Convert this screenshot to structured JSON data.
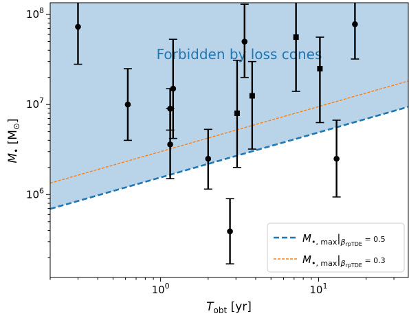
{
  "chart_data": {
    "type": "scatter",
    "xscale": "log",
    "yscale": "log",
    "xlim": [
      0.2,
      37
    ],
    "ylim": [
      120000,
      135000000
    ],
    "x_ticks": [
      {
        "value": 1,
        "base": "10",
        "exp": "0"
      },
      {
        "value": 10,
        "base": "10",
        "exp": "1"
      }
    ],
    "y_ticks": [
      {
        "value": 1000000,
        "base": "10",
        "exp": "6"
      },
      {
        "value": 10000000,
        "base": "10",
        "exp": "7"
      },
      {
        "value": 100000000,
        "base": "10",
        "exp": "8"
      }
    ],
    "xlabel": {
      "main": "T",
      "sub": "obt",
      "unit": " [yr]"
    },
    "ylabel": {
      "main": "M",
      "sub": "•",
      "unit_open": " [M",
      "unit_sub": "⊙",
      "unit_close": "]"
    },
    "region_label": "Forbidden by loss cones",
    "region_color": "#b9d3e8",
    "lines": [
      {
        "slope": 0.5,
        "y_at_x1": 1550000,
        "color": "#1f77b4",
        "style": "dashed-thick",
        "legend": {
          "main": "M",
          "sub": "•, max",
          "beta": "β",
          "beta_sub": "rpTDE",
          "value": " = 0.5"
        }
      },
      {
        "slope": 0.5,
        "y_at_x1": 3000000,
        "color": "#ff7f0e",
        "style": "dashed-thin",
        "legend": {
          "main": "M",
          "sub": "•, max",
          "beta": "β",
          "beta_sub": "rpTDE",
          "value": " = 0.3"
        }
      }
    ],
    "points": [
      {
        "x": 0.3,
        "y": 73000000,
        "ylow": 28000000,
        "yhigh": 135000000,
        "marker": "circle"
      },
      {
        "x": 0.62,
        "y": 10000000,
        "ylow": 4000000,
        "yhigh": 25000000,
        "marker": "circle"
      },
      {
        "x": 1.15,
        "y": 9000000,
        "ylow": 5200000,
        "yhigh": 15000000,
        "marker": "circle"
      },
      {
        "x": 1.15,
        "y": 3600000,
        "ylow": 1500000,
        "yhigh": 9000000,
        "marker": "circle"
      },
      {
        "x": 1.2,
        "y": 15000000,
        "ylow": 4200000,
        "yhigh": 53000000,
        "marker": "circle"
      },
      {
        "x": 2.0,
        "y": 2500000,
        "ylow": 1150000,
        "yhigh": 5300000,
        "marker": "circle"
      },
      {
        "x": 2.75,
        "y": 390000,
        "ylow": 170000,
        "yhigh": 900000,
        "marker": "circle"
      },
      {
        "x": 3.05,
        "y": 8000000,
        "ylow": 2000000,
        "yhigh": 31000000,
        "marker": "square"
      },
      {
        "x": 3.4,
        "y": 50000000,
        "ylow": 20000000,
        "yhigh": 130000000,
        "marker": "circle"
      },
      {
        "x": 3.8,
        "y": 12500000,
        "ylow": 3200000,
        "yhigh": 30000000,
        "marker": "square"
      },
      {
        "x": 7.2,
        "y": 56000000,
        "ylow": 14000000,
        "yhigh": 135000000,
        "marker": "square"
      },
      {
        "x": 10.2,
        "y": 25000000,
        "ylow": 6300000,
        "yhigh": 56000000,
        "marker": "square"
      },
      {
        "x": 13.0,
        "y": 2500000,
        "ylow": 940000,
        "yhigh": 6700000,
        "marker": "circle"
      },
      {
        "x": 17.0,
        "y": 78000000,
        "ylow": 32000000,
        "yhigh": 135000000,
        "marker": "circle"
      }
    ],
    "legend_position": "lower-right",
    "grid": false
  }
}
